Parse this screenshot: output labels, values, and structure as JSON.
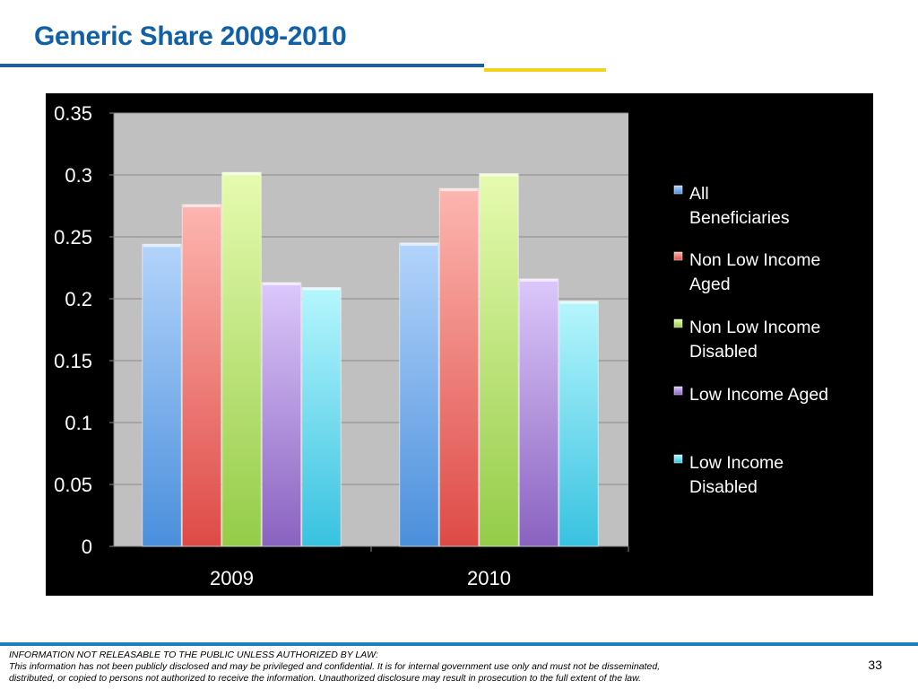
{
  "slide": {
    "title": "Generic Share 2009-2010",
    "page_number": "33"
  },
  "footer": {
    "line1": "INFORMATION NOT RELEASABLE TO THE PUBLIC UNLESS AUTHORIZED BY LAW:",
    "line2": "This information has not been publicly disclosed and may be privileged and confidential.  It is for internal government use only and must not be disseminated,",
    "line3": "distributed, or copied to persons not authorized to receive the information.  Unauthorized disclosure may result in prosecution to the full extent of the law."
  },
  "colors": {
    "title": "#1060a8",
    "background": "#000000",
    "plot_area": "#c0c0c0"
  },
  "chart_data": {
    "type": "bar",
    "title": "",
    "xlabel": "",
    "ylabel": "",
    "categories": [
      "2009",
      "2010"
    ],
    "ylim": [
      0,
      0.35
    ],
    "yticks": [
      "0",
      "0.05",
      "0.1",
      "0.15",
      "0.2",
      "0.25",
      "0.3",
      "0.35"
    ],
    "grid": true,
    "legend_position": "right",
    "series": [
      {
        "name": "All Beneficiaries",
        "values": [
          0.244,
          0.245
        ],
        "color_light": "#b3d4fb",
        "color_dark": "#4a8fdc"
      },
      {
        "name": "Non Low Income Aged",
        "values": [
          0.276,
          0.289
        ],
        "color_light": "#fdb6b0",
        "color_dark": "#de4a46"
      },
      {
        "name": "Non Low Income Disabled",
        "values": [
          0.302,
          0.301
        ],
        "color_light": "#e6fbb0",
        "color_dark": "#94cc48"
      },
      {
        "name": "Low Income Aged",
        "values": [
          0.213,
          0.216
        ],
        "color_light": "#dcc8fb",
        "color_dark": "#8a62c0"
      },
      {
        "name": "Low Income Disabled",
        "values": [
          0.209,
          0.198
        ],
        "color_light": "#b6f6fd",
        "color_dark": "#38c2e0"
      }
    ]
  }
}
